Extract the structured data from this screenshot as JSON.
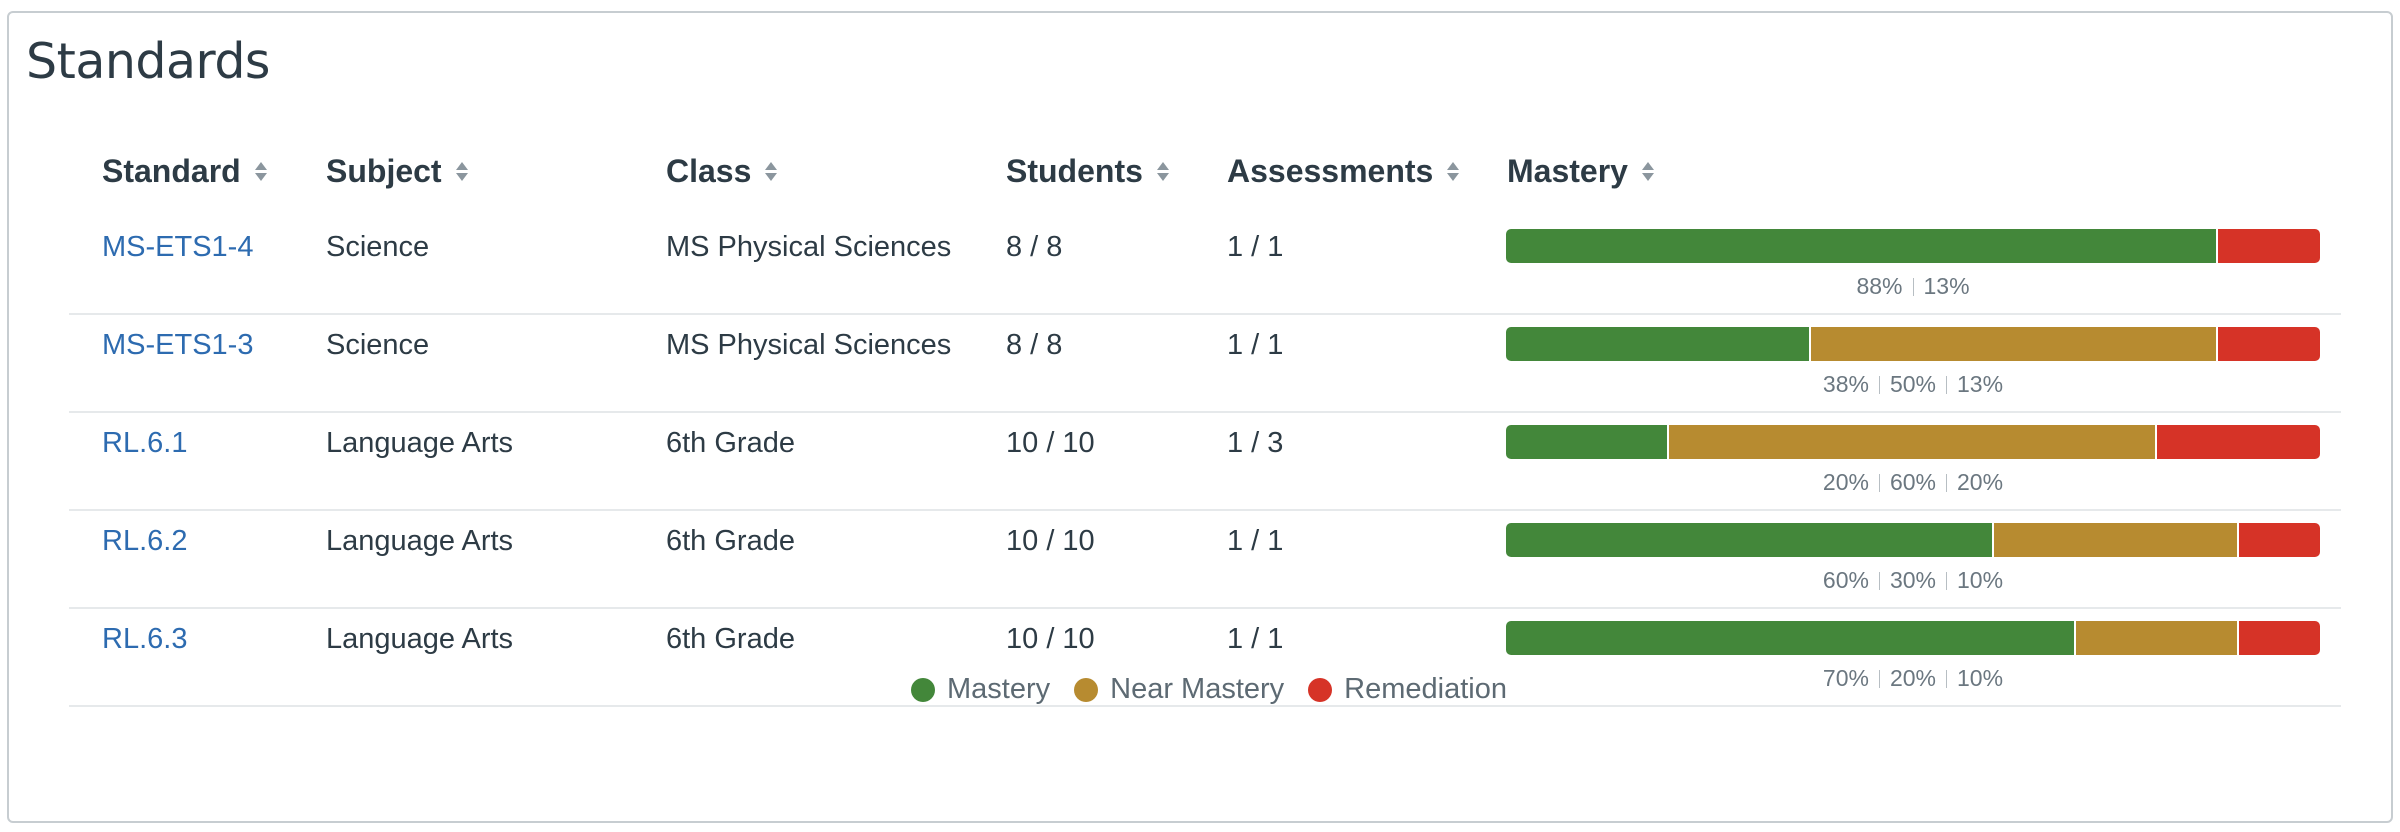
{
  "title": "Standards",
  "columns": [
    {
      "label": "Standard"
    },
    {
      "label": "Subject"
    },
    {
      "label": "Class"
    },
    {
      "label": "Students"
    },
    {
      "label": "Assessments"
    },
    {
      "label": "Mastery"
    }
  ],
  "rows": [
    {
      "standard": "MS-ETS1-4",
      "subject": "Science",
      "class": "MS Physical Sciences",
      "students": "8 / 8",
      "assessments": "1 / 1",
      "mastery": [
        {
          "type": "mastery",
          "value": 0.875,
          "label": "88%"
        },
        {
          "type": "remed",
          "value": 0.125,
          "label": "13%"
        }
      ]
    },
    {
      "standard": "MS-ETS1-3",
      "subject": "Science",
      "class": "MS Physical Sciences",
      "students": "8 / 8",
      "assessments": "1 / 1",
      "mastery": [
        {
          "type": "mastery",
          "value": 0.375,
          "label": "38%"
        },
        {
          "type": "near",
          "value": 0.5,
          "label": "50%"
        },
        {
          "type": "remed",
          "value": 0.125,
          "label": "13%"
        }
      ]
    },
    {
      "standard": "RL.6.1",
      "subject": "Language Arts",
      "class": "6th Grade",
      "students": "10 / 10",
      "assessments": "1 / 3",
      "mastery": [
        {
          "type": "mastery",
          "value": 0.2,
          "label": "20%"
        },
        {
          "type": "near",
          "value": 0.6,
          "label": "60%"
        },
        {
          "type": "remed",
          "value": 0.2,
          "label": "20%"
        }
      ]
    },
    {
      "standard": "RL.6.2",
      "subject": "Language Arts",
      "class": "6th Grade",
      "students": "10 / 10",
      "assessments": "1 / 1",
      "mastery": [
        {
          "type": "mastery",
          "value": 0.6,
          "label": "60%"
        },
        {
          "type": "near",
          "value": 0.3,
          "label": "30%"
        },
        {
          "type": "remed",
          "value": 0.1,
          "label": "10%"
        }
      ]
    },
    {
      "standard": "RL.6.3",
      "subject": "Language Arts",
      "class": "6th Grade",
      "students": "10 / 10",
      "assessments": "1 / 1",
      "mastery": [
        {
          "type": "mastery",
          "value": 0.7,
          "label": "70%"
        },
        {
          "type": "near",
          "value": 0.2,
          "label": "20%"
        },
        {
          "type": "remed",
          "value": 0.1,
          "label": "10%"
        }
      ]
    }
  ],
  "legend": [
    {
      "label": "Mastery",
      "color": "#43873a"
    },
    {
      "label": "Near Mastery",
      "color": "#b78b30"
    },
    {
      "label": "Remediation",
      "color": "#d63327"
    }
  ],
  "colors": {
    "link": "#2d6bb0",
    "mastery": "#43873a",
    "near": "#b78b30",
    "remed": "#d63327"
  }
}
